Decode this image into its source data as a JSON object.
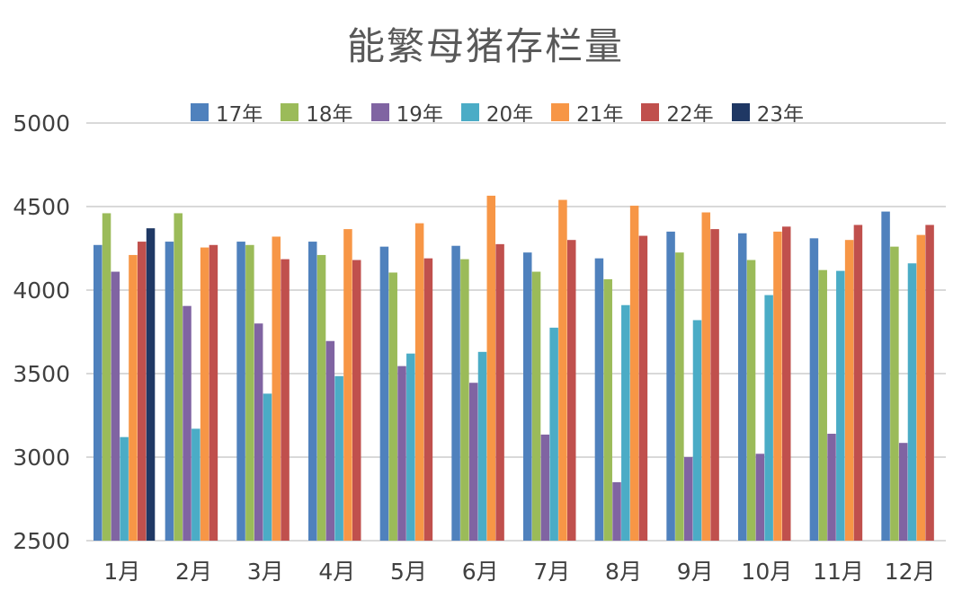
{
  "chart_data": {
    "type": "bar",
    "title": "能繁母猪存栏量",
    "xlabel": "",
    "ylabel": "",
    "ylim": [
      2500,
      5000
    ],
    "yticks": [
      2500,
      3000,
      3500,
      4000,
      4500,
      5000
    ],
    "grid": true,
    "legend_position": "top",
    "categories": [
      "1月",
      "2月",
      "3月",
      "4月",
      "5月",
      "6月",
      "7月",
      "8月",
      "9月",
      "10月",
      "11月",
      "12月"
    ],
    "series": [
      {
        "name": "17年",
        "color": "#4f81bd",
        "values": [
          4270,
          4290,
          4290,
          4290,
          4260,
          4265,
          4225,
          4190,
          4350,
          4340,
          4310,
          4470
        ]
      },
      {
        "name": "18年",
        "color": "#9bbb59",
        "values": [
          4460,
          4460,
          4270,
          4210,
          4105,
          4185,
          4110,
          4065,
          4225,
          4180,
          4120,
          4260
        ]
      },
      {
        "name": "19年",
        "color": "#8064a2",
        "values": [
          4110,
          3905,
          3800,
          3695,
          3545,
          3445,
          3135,
          2850,
          3000,
          3020,
          3140,
          3085
        ]
      },
      {
        "name": "20年",
        "color": "#4bacc6",
        "values": [
          3120,
          3170,
          3380,
          3485,
          3620,
          3630,
          3775,
          3910,
          3820,
          3970,
          4115,
          4160
        ]
      },
      {
        "name": "21年",
        "color": "#f79646",
        "values": [
          4210,
          4255,
          4320,
          4365,
          4400,
          4565,
          4540,
          4505,
          4465,
          4350,
          4300,
          4330
        ]
      },
      {
        "name": "22年",
        "color": "#c0504d",
        "values": [
          4290,
          4270,
          4185,
          4180,
          4190,
          4275,
          4300,
          4325,
          4365,
          4380,
          4390,
          4390
        ]
      },
      {
        "name": "23年",
        "color": "#1f3864",
        "values": [
          4370,
          null,
          null,
          null,
          null,
          null,
          null,
          null,
          null,
          null,
          null,
          null
        ]
      }
    ]
  }
}
